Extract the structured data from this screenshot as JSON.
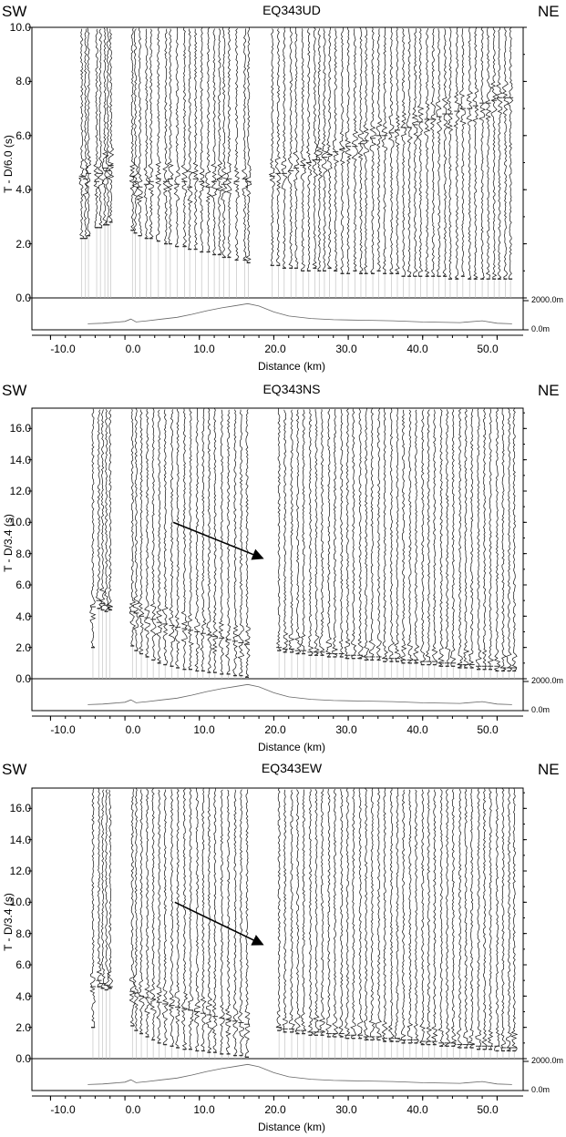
{
  "figure": {
    "left_label": "SW",
    "right_label": "NE",
    "elevation_top_label": "2000.0m",
    "elevation_bottom_label": "0.0m",
    "trace_color": "#111111",
    "arrival_color": "#333333"
  },
  "chart_data": [
    {
      "type": "line",
      "title": "EQ343UD",
      "xlabel": "Distance (km)",
      "ylabel": "T - D/6.0 (s)",
      "xlim": [
        -12.5,
        53.5
      ],
      "ylim": [
        0,
        10
      ],
      "x_ticks": [
        "-10.0",
        "0.0",
        "10.0",
        "20.0",
        "30.0",
        "40.0",
        "50.0"
      ],
      "x_tick_values": [
        -10,
        0,
        10,
        20,
        30,
        40,
        50
      ],
      "y_ticks": [
        "0.0",
        "2.0",
        "4.0",
        "6.0",
        "8.0",
        "10.0"
      ],
      "y_tick_values": [
        0,
        2,
        4,
        6,
        8,
        10
      ],
      "station_distances_km": [
        -5.8,
        -5.3,
        -4.9,
        -3.8,
        -3.3,
        -2.7,
        -2.3,
        -1.9,
        1.0,
        1.4,
        2.0,
        2.9,
        3.5,
        4.5,
        5.5,
        6.1,
        7.0,
        8.0,
        8.7,
        9.5,
        10.3,
        11.2,
        12.0,
        12.7,
        13.3,
        14.0,
        15.0,
        16.1,
        16.6,
        19.8,
        20.6,
        21.4,
        22.3,
        23.0,
        23.9,
        24.7,
        25.5,
        26.1,
        26.8,
        27.5,
        28.3,
        29.2,
        30.0,
        30.9,
        31.7,
        32.4,
        33.3,
        34.1,
        34.9,
        35.8,
        36.6,
        37.4,
        38.2,
        39.0,
        39.7,
        40.6,
        41.4,
        42.2,
        43.0,
        43.7,
        44.6,
        45.4,
        46.3,
        47.1,
        48.0,
        48.8,
        49.6,
        50.3,
        51.1,
        51.8
      ],
      "first_arrival_times_s": [
        2.2,
        2.2,
        2.3,
        2.6,
        2.6,
        2.7,
        2.7,
        2.8,
        2.5,
        2.4,
        2.3,
        2.2,
        2.2,
        2.1,
        2.0,
        2.0,
        1.9,
        1.9,
        1.8,
        1.8,
        1.7,
        1.7,
        1.6,
        1.6,
        1.5,
        1.5,
        1.4,
        1.4,
        1.3,
        1.2,
        1.2,
        1.1,
        1.1,
        1.1,
        1.0,
        1.0,
        1.1,
        1.0,
        1.0,
        1.1,
        1.0,
        0.9,
        0.9,
        1.0,
        0.9,
        0.9,
        0.9,
        1.0,
        0.9,
        0.9,
        0.9,
        0.8,
        0.8,
        0.8,
        0.8,
        0.8,
        0.8,
        0.8,
        0.8,
        0.7,
        0.7,
        0.8,
        0.7,
        0.7,
        0.7,
        0.7,
        0.7,
        0.7,
        0.7,
        0.7
      ],
      "secondary_arrival_times_s": [
        4.5,
        4.4,
        4.6,
        4.3,
        4.6,
        4.8,
        4.7,
        4.9,
        4.5,
        4.3,
        4.1,
        4.2,
        4.3,
        4.4,
        4.3,
        4.4,
        4.2,
        4.3,
        4.1,
        4.4,
        4.3,
        4.1,
        4.3,
        4.4,
        4.2,
        4.4,
        4.3,
        4.4,
        4.3,
        4.5,
        4.6,
        4.6,
        4.7,
        4.8,
        4.9,
        5.0,
        5.1,
        5.1,
        5.2,
        5.3,
        5.4,
        5.5,
        5.6,
        5.6,
        5.7,
        5.8,
        5.9,
        6.0,
        6.0,
        6.1,
        6.2,
        6.3,
        6.3,
        6.4,
        6.5,
        6.6,
        6.6,
        6.7,
        6.8,
        6.8,
        6.9,
        7.0,
        7.0,
        7.1,
        7.2,
        7.2,
        7.3,
        7.4,
        7.4,
        7.4
      ],
      "elevation_profile": {
        "x_km": [
          -5,
          -3,
          0,
          0.8,
          1.5,
          3,
          5,
          7,
          9,
          11,
          13,
          15,
          16.5,
          18,
          20,
          22,
          25,
          28,
          32,
          36,
          40,
          45,
          48,
          50,
          52
        ],
        "elev_m": [
          200,
          250,
          400,
          600,
          350,
          450,
          600,
          750,
          1000,
          1300,
          1550,
          1750,
          1900,
          1700,
          1200,
          850,
          650,
          550,
          500,
          450,
          350,
          300,
          450,
          250,
          200
        ]
      }
    },
    {
      "type": "line",
      "title": "EQ343NS",
      "xlabel": "Distance (km)",
      "ylabel": "T - D/3.4 (s)",
      "xlim": [
        -12.5,
        53.5
      ],
      "ylim": [
        0,
        17.3
      ],
      "x_ticks": [
        "-10.0",
        "0.0",
        "10.0",
        "20.0",
        "30.0",
        "40.0",
        "50.0"
      ],
      "x_tick_values": [
        -10,
        0,
        10,
        20,
        30,
        40,
        50
      ],
      "y_ticks": [
        "0.0",
        "2.0",
        "4.0",
        "6.0",
        "8.0",
        "10.0",
        "12.0",
        "14.0",
        "16.0"
      ],
      "y_tick_values": [
        0,
        2,
        4,
        6,
        8,
        10,
        12,
        14,
        16
      ],
      "station_distances_km": [
        -4.3,
        -3.5,
        -3.0,
        -2.5,
        -2.0,
        1.0,
        1.5,
        2.2,
        3.0,
        3.8,
        4.6,
        5.4,
        6.3,
        7.1,
        8.0,
        8.8,
        9.7,
        10.5,
        11.3,
        12.1,
        13.0,
        13.9,
        14.8,
        15.6,
        16.4,
        20.7,
        21.5,
        22.4,
        23.2,
        24.0,
        24.9,
        25.7,
        26.5,
        27.4,
        28.2,
        29.1,
        29.9,
        30.7,
        31.6,
        32.4,
        33.2,
        34.1,
        34.9,
        35.8,
        36.6,
        37.4,
        38.3,
        39.1,
        40.0,
        40.8,
        41.6,
        42.5,
        43.3,
        44.1,
        45.0,
        45.8,
        46.6,
        47.5,
        48.3,
        49.1,
        50.0,
        50.8,
        51.6,
        52.3
      ],
      "first_arrival_times_s": [
        2.0,
        4.5,
        4.4,
        4.3,
        4.4,
        2.1,
        1.8,
        1.6,
        1.4,
        1.2,
        1.0,
        0.9,
        0.8,
        0.7,
        0.6,
        0.6,
        0.5,
        0.5,
        0.4,
        0.4,
        0.3,
        0.3,
        0.2,
        0.2,
        0.1,
        1.8,
        1.7,
        1.7,
        1.6,
        1.6,
        1.5,
        1.5,
        1.5,
        1.4,
        1.4,
        1.4,
        1.3,
        1.3,
        1.3,
        1.2,
        1.2,
        1.2,
        1.1,
        1.1,
        1.1,
        1.0,
        1.0,
        1.0,
        0.9,
        0.9,
        0.9,
        0.8,
        0.8,
        0.8,
        0.7,
        0.7,
        0.7,
        0.6,
        0.6,
        0.6,
        0.5,
        0.5,
        0.5,
        0.5
      ],
      "secondary_arrival_times_s": [
        4.6,
        5.0,
        4.8,
        4.7,
        4.6,
        4.3,
        4.2,
        4.0,
        3.9,
        3.8,
        3.6,
        3.5,
        3.4,
        3.3,
        3.2,
        3.1,
        3.0,
        2.9,
        2.8,
        2.7,
        2.6,
        2.5,
        2.4,
        2.3,
        2.2,
        2.0,
        1.9,
        1.9,
        1.8,
        1.8,
        1.7,
        1.7,
        1.7,
        1.6,
        1.6,
        1.6,
        1.5,
        1.5,
        1.5,
        1.4,
        1.4,
        1.4,
        1.3,
        1.3,
        1.3,
        1.2,
        1.2,
        1.2,
        1.1,
        1.1,
        1.1,
        1.0,
        1.0,
        1.0,
        0.9,
        0.9,
        0.9,
        0.8,
        0.8,
        0.8,
        0.8,
        0.7,
        0.7,
        0.7
      ],
      "annotation_arrow": {
        "from": [
          6.5,
          10.0
        ],
        "to": [
          18.5,
          7.7
        ]
      },
      "elevation_profile": {
        "x_km": [
          -5,
          -3,
          0,
          0.8,
          1.5,
          3,
          5,
          7,
          9,
          11,
          13,
          15,
          16.5,
          18,
          20,
          22,
          25,
          28,
          32,
          36,
          40,
          45,
          48,
          50,
          52
        ],
        "elev_m": [
          200,
          250,
          400,
          600,
          350,
          450,
          600,
          750,
          1000,
          1300,
          1550,
          1750,
          1900,
          1700,
          1200,
          850,
          650,
          550,
          500,
          450,
          350,
          300,
          450,
          250,
          200
        ]
      }
    },
    {
      "type": "line",
      "title": "EQ343EW",
      "xlabel": "Distance (km)",
      "ylabel": "T - D/3.4 (s)",
      "xlim": [
        -12.5,
        53.5
      ],
      "ylim": [
        0,
        17.3
      ],
      "x_ticks": [
        "-10.0",
        "0.0",
        "10.0",
        "20.0",
        "30.0",
        "40.0",
        "50.0"
      ],
      "x_tick_values": [
        -10,
        0,
        10,
        20,
        30,
        40,
        50
      ],
      "y_ticks": [
        "0.0",
        "2.0",
        "4.0",
        "6.0",
        "8.0",
        "10.0",
        "12.0",
        "14.0",
        "16.0"
      ],
      "y_tick_values": [
        0,
        2,
        4,
        6,
        8,
        10,
        12,
        14,
        16
      ],
      "station_distances_km": [
        -4.3,
        -3.5,
        -3.0,
        -2.5,
        -2.0,
        1.0,
        1.5,
        2.2,
        3.0,
        3.8,
        4.6,
        5.4,
        6.3,
        7.1,
        8.0,
        8.8,
        9.7,
        10.5,
        11.3,
        12.1,
        13.0,
        13.9,
        14.8,
        15.6,
        16.4,
        20.7,
        21.5,
        22.4,
        23.2,
        24.0,
        24.9,
        25.7,
        26.5,
        27.4,
        28.2,
        29.1,
        29.9,
        30.7,
        31.6,
        32.4,
        33.2,
        34.1,
        34.9,
        35.8,
        36.6,
        37.4,
        38.3,
        39.1,
        40.0,
        40.8,
        41.6,
        42.5,
        43.3,
        44.1,
        45.0,
        45.8,
        46.6,
        47.5,
        48.3,
        49.1,
        50.0,
        50.8,
        51.6,
        52.3
      ],
      "first_arrival_times_s": [
        2.0,
        4.6,
        4.5,
        4.4,
        4.5,
        2.1,
        1.8,
        1.6,
        1.4,
        1.2,
        1.0,
        0.9,
        0.8,
        0.7,
        0.6,
        0.6,
        0.5,
        0.5,
        0.4,
        0.4,
        0.3,
        0.3,
        0.2,
        0.2,
        0.1,
        1.8,
        1.7,
        1.7,
        1.6,
        1.6,
        1.5,
        1.5,
        1.5,
        1.4,
        1.4,
        1.4,
        1.3,
        1.3,
        1.3,
        1.2,
        1.2,
        1.2,
        1.1,
        1.1,
        1.1,
        1.0,
        1.0,
        1.0,
        0.9,
        0.9,
        0.9,
        0.8,
        0.8,
        0.8,
        0.7,
        0.7,
        0.7,
        0.6,
        0.6,
        0.6,
        0.5,
        0.5,
        0.5,
        0.5
      ],
      "secondary_arrival_times_s": [
        4.6,
        5.0,
        4.8,
        4.7,
        4.6,
        4.3,
        4.2,
        4.0,
        3.9,
        3.8,
        3.6,
        3.5,
        3.4,
        3.3,
        3.2,
        3.1,
        3.0,
        2.9,
        2.8,
        2.7,
        2.6,
        2.5,
        2.4,
        2.3,
        2.2,
        2.0,
        1.9,
        1.9,
        1.8,
        1.8,
        1.7,
        1.7,
        1.7,
        1.6,
        1.6,
        1.6,
        1.5,
        1.5,
        1.5,
        1.4,
        1.4,
        1.4,
        1.3,
        1.3,
        1.3,
        1.2,
        1.2,
        1.2,
        1.1,
        1.1,
        1.1,
        1.0,
        1.0,
        1.0,
        0.9,
        0.9,
        0.9,
        0.8,
        0.8,
        0.8,
        0.8,
        0.7,
        0.7,
        0.7
      ],
      "annotation_arrow": {
        "from": [
          6.7,
          10.0
        ],
        "to": [
          18.5,
          7.3
        ]
      },
      "elevation_profile": {
        "x_km": [
          -5,
          -3,
          0,
          0.8,
          1.5,
          3,
          5,
          7,
          9,
          11,
          13,
          15,
          16.5,
          18,
          20,
          22,
          25,
          28,
          32,
          36,
          40,
          45,
          48,
          50,
          52
        ],
        "elev_m": [
          200,
          250,
          400,
          600,
          350,
          450,
          600,
          750,
          1000,
          1300,
          1550,
          1750,
          1900,
          1700,
          1200,
          850,
          650,
          550,
          500,
          450,
          350,
          300,
          450,
          250,
          200
        ]
      }
    }
  ]
}
